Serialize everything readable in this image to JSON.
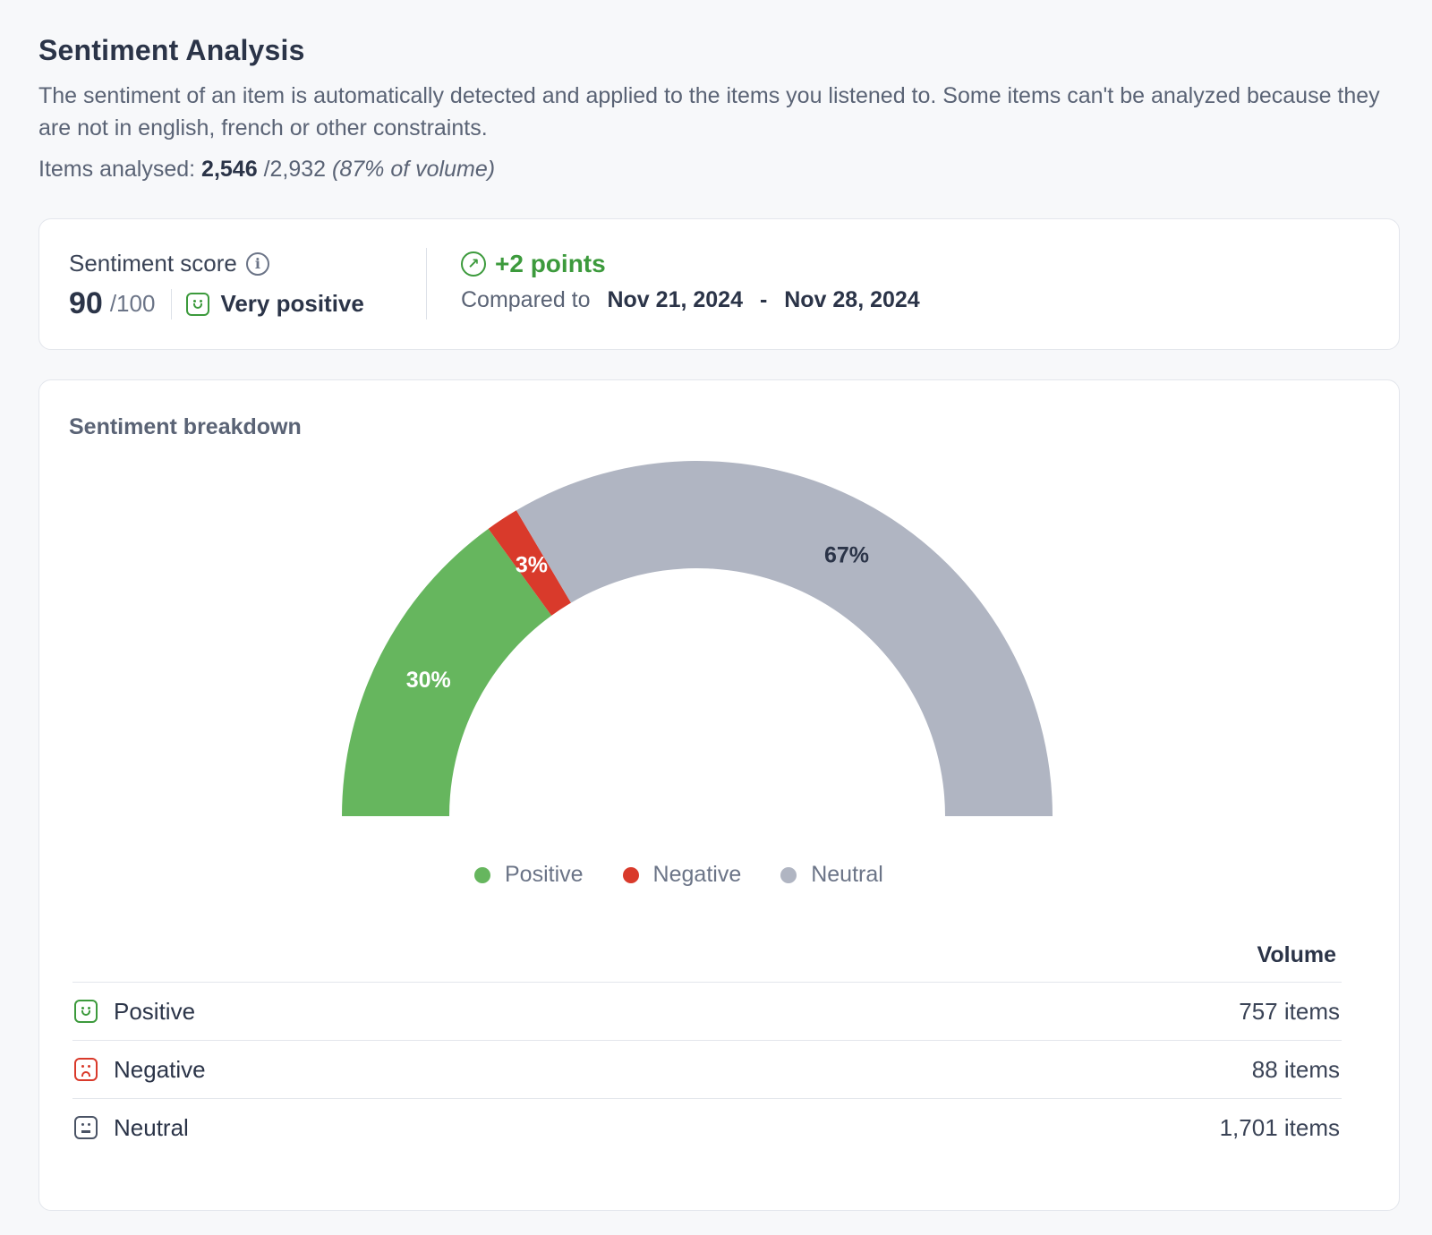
{
  "header": {
    "title": "Sentiment Analysis",
    "description": "The sentiment of an item is automatically detected and applied to the items you listened to. Some items can't be analyzed because they are not in english, french or other constraints.",
    "items_label": "Items analysed:",
    "items_analysed": "2,546",
    "items_total": "/2,932",
    "items_percent": "(87% of volume)"
  },
  "score": {
    "label": "Sentiment score",
    "value": "90",
    "max": "/100",
    "sentiment": "Very positive",
    "delta": "+2 points",
    "compare_label": "Compared to",
    "date_from": "Nov 21, 2024",
    "date_separator": "-",
    "date_to": "Nov 28, 2024"
  },
  "breakdown": {
    "title": "Sentiment breakdown",
    "volume_header": "Volume",
    "rows": [
      {
        "label": "Positive",
        "value": "757 items"
      },
      {
        "label": "Negative",
        "value": "88 items"
      },
      {
        "label": "Neutral",
        "value": "1,701 items"
      }
    ]
  },
  "colors": {
    "positive": "#66b65e",
    "negative": "#d93a2b",
    "neutral": "#b0b5c2",
    "accent_green": "#3c9a3c"
  },
  "icons": {
    "info": "info-icon",
    "trend": "arrow-up-right-icon",
    "positive": "smile-face-icon",
    "negative": "sad-face-icon",
    "neutral": "neutral-face-icon"
  },
  "chart_data": {
    "type": "pie",
    "categories": [
      "Positive",
      "Negative",
      "Neutral"
    ],
    "values": [
      30,
      3,
      67
    ],
    "labels": [
      "30%",
      "3%",
      "67%"
    ],
    "legend": [
      "Positive",
      "Negative",
      "Neutral"
    ],
    "legend_position": "bottom"
  }
}
